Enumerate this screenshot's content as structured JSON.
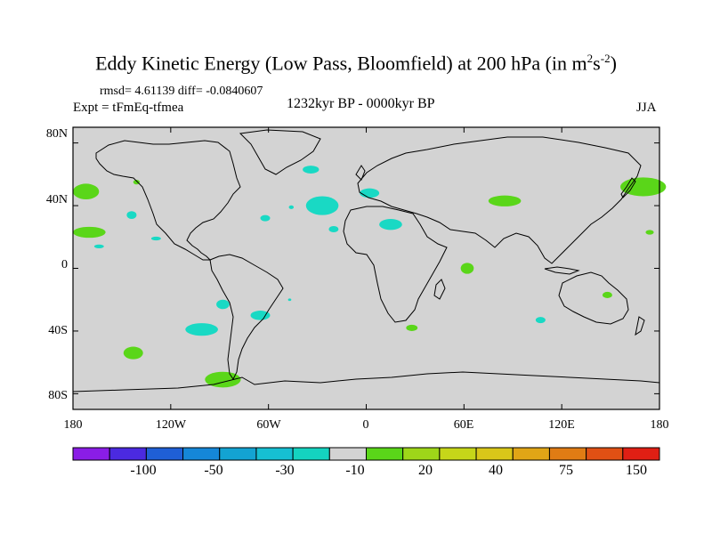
{
  "title": {
    "prefix": "Eddy Kinetic Energy (Low Pass, Bloomfield) at 200 hPa (in m",
    "sup1": "2",
    "mid": "s",
    "sup2": "-2",
    "suffix": ")"
  },
  "stats": "rmsd= 4.61139 diff= -0.0840607",
  "experiment": "Expt = tFmEq-tfmea",
  "period": "1232kyr BP - 0000kyr BP",
  "season": "JJA",
  "colors": {
    "land_mask": "#d3d3d3",
    "coast": "#000000",
    "neg": "#19d9c4",
    "pos": "#5ad619"
  },
  "y_labels": [
    "80N",
    "40N",
    "0",
    "40S",
    "80S"
  ],
  "x_labels": [
    "180",
    "120W",
    "60W",
    "0",
    "60E",
    "120E",
    "180"
  ],
  "colorbar": {
    "colors": [
      "#8a1de6",
      "#4b2ae0",
      "#1f5fd6",
      "#1587d8",
      "#13a3d2",
      "#16bfd2",
      "#14d3c0",
      "#d3d3d3",
      "#5ad619",
      "#9ed619",
      "#c6d619",
      "#d9c719",
      "#e0a516",
      "#e07c14",
      "#e05014",
      "#e01f14"
    ],
    "labels": [
      "-100",
      "-50",
      "-30",
      "-10",
      "20",
      "40",
      "75",
      "150"
    ]
  },
  "anomalies": [
    {
      "name": "north-pacific-west",
      "lon": -172,
      "lat": 49,
      "rx": 8,
      "ry": 5,
      "sign": "pos"
    },
    {
      "name": "north-pacific-small",
      "lon": -141,
      "lat": 55,
      "rx": 2,
      "ry": 1.5,
      "sign": "pos"
    },
    {
      "name": "east-pacific-blob",
      "lon": -144,
      "lat": 34,
      "rx": 3,
      "ry": 2.5,
      "sign": "neg"
    },
    {
      "name": "subtropical-pacific",
      "lon": -170,
      "lat": 23,
      "rx": 10,
      "ry": 3.5,
      "sign": "pos"
    },
    {
      "name": "hawaii-area",
      "lon": -164,
      "lat": 14,
      "rx": 3,
      "ry": 1.2,
      "sign": "neg"
    },
    {
      "name": "mexico-coast",
      "lon": -129,
      "lat": 19,
      "rx": 3,
      "ry": 1.2,
      "sign": "neg"
    },
    {
      "name": "north-atlantic-greenland",
      "lon": -34,
      "lat": 63,
      "rx": 5,
      "ry": 2.5,
      "sign": "neg"
    },
    {
      "name": "north-atlantic-main",
      "lon": -27,
      "lat": 40,
      "rx": 10,
      "ry": 6,
      "sign": "neg"
    },
    {
      "name": "atlantic-jet-small",
      "lon": -62,
      "lat": 32,
      "rx": 3,
      "ry": 2,
      "sign": "neg"
    },
    {
      "name": "atlantic-small-2",
      "lon": -46,
      "lat": 39,
      "rx": 1.5,
      "ry": 1.2,
      "sign": "neg"
    },
    {
      "name": "azores",
      "lon": -20,
      "lat": 25,
      "rx": 3,
      "ry": 2,
      "sign": "neg"
    },
    {
      "name": "europe",
      "lon": 2,
      "lat": 48,
      "rx": 6,
      "ry": 3,
      "sign": "neg"
    },
    {
      "name": "north-africa",
      "lon": 15,
      "lat": 28,
      "rx": 7,
      "ry": 3.5,
      "sign": "neg"
    },
    {
      "name": "caspian-siberia",
      "lon": 85,
      "lat": 43,
      "rx": 10,
      "ry": 3.5,
      "sign": "pos"
    },
    {
      "name": "kamchatka",
      "lon": 170,
      "lat": 52,
      "rx": 14,
      "ry": 6,
      "sign": "pos"
    },
    {
      "name": "kamchatka-small",
      "lon": 174,
      "lat": 23,
      "rx": 2.5,
      "ry": 1.5,
      "sign": "pos"
    },
    {
      "name": "horn-of-africa",
      "lon": 62,
      "lat": 0,
      "rx": 4,
      "ry": 3.5,
      "sign": "pos"
    },
    {
      "name": "south-pacific-1",
      "lon": -88,
      "lat": -23,
      "rx": 4,
      "ry": 3,
      "sign": "neg"
    },
    {
      "name": "south-pacific-2",
      "lon": -65,
      "lat": -30,
      "rx": 6,
      "ry": 3,
      "sign": "neg"
    },
    {
      "name": "south-pacific-3",
      "lon": -101,
      "lat": -39,
      "rx": 10,
      "ry": 4,
      "sign": "neg"
    },
    {
      "name": "south-atlantic-1",
      "lon": -47,
      "lat": -20,
      "rx": 1,
      "ry": 0.8,
      "sign": "neg"
    },
    {
      "name": "south-africa-south",
      "lon": 28,
      "lat": -38,
      "rx": 3.5,
      "ry": 2,
      "sign": "pos"
    },
    {
      "name": "australia-north",
      "lon": 148,
      "lat": -17,
      "rx": 3,
      "ry": 2,
      "sign": "pos"
    },
    {
      "name": "indian-ocean-south",
      "lon": 107,
      "lat": -33,
      "rx": 3,
      "ry": 2,
      "sign": "neg"
    },
    {
      "name": "southern-ocean-west",
      "lon": -143,
      "lat": -54,
      "rx": 6,
      "ry": 4,
      "sign": "pos"
    },
    {
      "name": "southern-ocean-antarctic",
      "lon": -88,
      "lat": -71,
      "rx": 11,
      "ry": 5,
      "sign": "pos"
    }
  ]
}
